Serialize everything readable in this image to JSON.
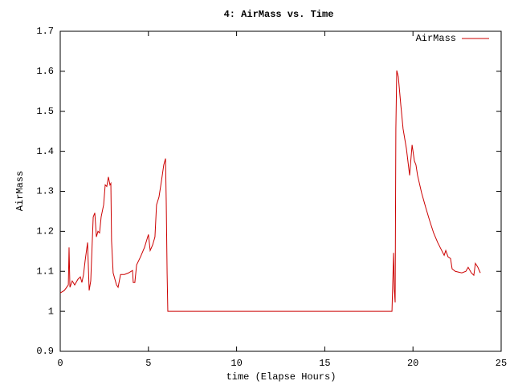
{
  "chart_data": {
    "type": "line",
    "title": "4: AirMass vs. Time",
    "xlabel": "time (Elapse Hours)",
    "ylabel": "AirMass",
    "x": [
      0,
      0.23,
      0.46,
      0.5,
      0.55,
      0.68,
      0.82,
      1.0,
      1.14,
      1.23,
      1.32,
      1.41,
      1.55,
      1.64,
      1.73,
      1.87,
      1.96,
      2.05,
      2.14,
      2.23,
      2.32,
      2.46,
      2.55,
      2.64,
      2.73,
      2.82,
      2.87,
      2.91,
      3.0,
      3.19,
      3.28,
      3.42,
      3.64,
      3.87,
      4.1,
      4.14,
      4.23,
      4.33,
      4.55,
      4.78,
      5.0,
      5.1,
      5.24,
      5.37,
      5.46,
      5.6,
      5.74,
      5.87,
      5.97,
      6.01,
      6.06,
      6.1,
      18.81,
      18.9,
      18.94,
      18.99,
      19.03,
      19.08,
      19.17,
      19.31,
      19.44,
      19.63,
      19.81,
      19.95,
      20.08,
      20.17,
      20.26,
      20.49,
      20.72,
      20.95,
      21.17,
      21.4,
      21.63,
      21.77,
      21.86,
      21.99,
      22.13,
      22.22,
      22.4,
      22.77,
      23.0,
      23.13,
      23.31,
      23.45,
      23.54,
      23.68,
      23.82
    ],
    "series": [
      {
        "name": "AirMass",
        "color": "#cc0000",
        "values": [
          1.046,
          1.052,
          1.066,
          1.16,
          1.06,
          1.076,
          1.066,
          1.08,
          1.086,
          1.072,
          1.092,
          1.126,
          1.172,
          1.052,
          1.076,
          1.236,
          1.246,
          1.186,
          1.2,
          1.196,
          1.236,
          1.266,
          1.316,
          1.312,
          1.336,
          1.316,
          1.32,
          1.176,
          1.096,
          1.066,
          1.06,
          1.092,
          1.092,
          1.096,
          1.102,
          1.072,
          1.072,
          1.116,
          1.136,
          1.16,
          1.192,
          1.152,
          1.166,
          1.186,
          1.266,
          1.286,
          1.326,
          1.366,
          1.382,
          1.276,
          1.096,
          1.0,
          1.0,
          1.146,
          1.056,
          1.022,
          1.456,
          1.602,
          1.586,
          1.516,
          1.456,
          1.406,
          1.34,
          1.416,
          1.376,
          1.366,
          1.34,
          1.296,
          1.26,
          1.226,
          1.196,
          1.172,
          1.152,
          1.14,
          1.152,
          1.136,
          1.132,
          1.106,
          1.1,
          1.096,
          1.1,
          1.11,
          1.096,
          1.09,
          1.12,
          1.11,
          1.096
        ]
      }
    ],
    "xlim": [
      0,
      25
    ],
    "xticks": [
      0,
      5,
      10,
      15,
      20,
      25
    ],
    "ylim": [
      0.9,
      1.7
    ],
    "yticks": [
      0.9,
      1,
      1.1,
      1.2,
      1.3,
      1.4,
      1.5,
      1.6,
      1.7
    ],
    "legend": "top-right",
    "grid": false
  }
}
